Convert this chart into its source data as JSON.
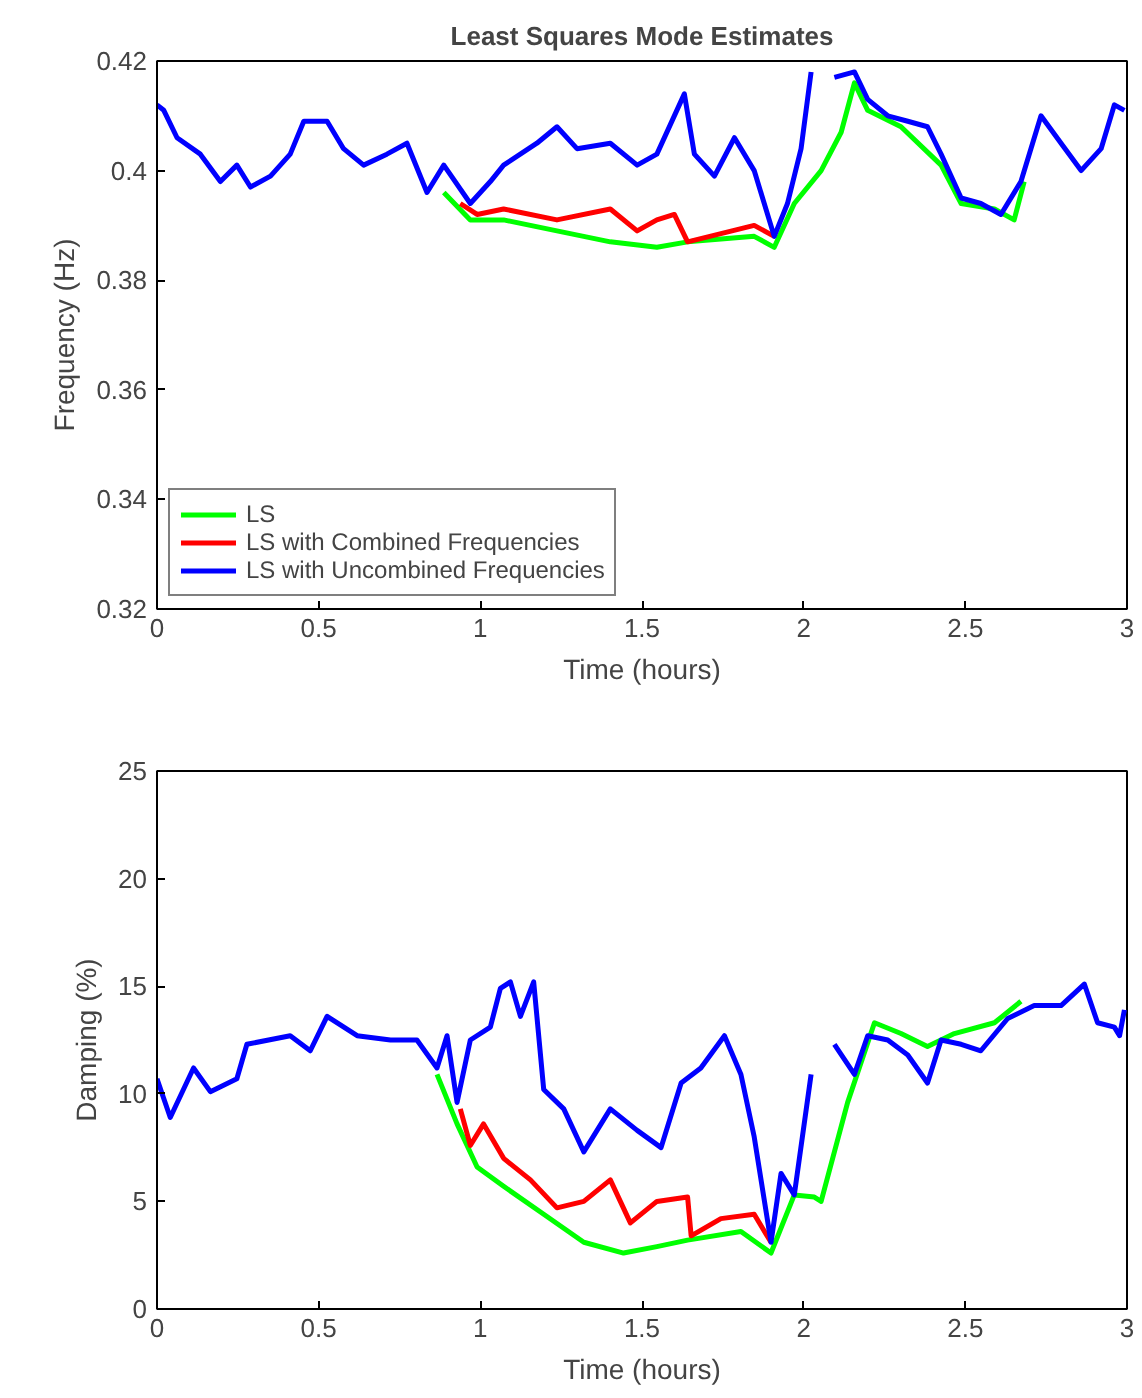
{
  "chart_data": [
    {
      "type": "line",
      "title": "Least Squares Mode Estimates",
      "xlabel": "Time (hours)",
      "ylabel": "Frequency (Hz)",
      "xlim": [
        0,
        3
      ],
      "ylim": [
        0.32,
        0.42
      ],
      "xticks": [
        0,
        0.5,
        1,
        1.5,
        2,
        2.5,
        3
      ],
      "yticks": [
        0.32,
        0.34,
        0.36,
        0.38,
        0.4,
        0.42
      ],
      "grid": false,
      "legend": "bottom left",
      "line_style": "solid",
      "marker": "none",
      "series": [
        {
          "name": "LS",
          "color": "#00ff00",
          "x": [
            0.887,
            0.969,
            1.072,
            1.237,
            1.402,
            1.546,
            1.641,
            1.847,
            1.909,
            1.971,
            2.054,
            2.116,
            2.157,
            2.198,
            2.301,
            2.425,
            2.487,
            2.59,
            2.651,
            2.682
          ],
          "values": [
            0.396,
            0.391,
            0.391,
            0.389,
            0.387,
            0.386,
            0.387,
            0.388,
            0.386,
            0.394,
            0.4,
            0.407,
            0.416,
            0.411,
            0.408,
            0.401,
            0.394,
            0.393,
            0.391,
            0.398
          ]
        },
        {
          "name": "LS with Combined Frequencies",
          "color": "#ff0000",
          "x": [
            0.938,
            0.99,
            1.072,
            1.237,
            1.402,
            1.485,
            1.546,
            1.6,
            1.641,
            1.847,
            1.909
          ],
          "values": [
            0.394,
            0.392,
            0.393,
            0.391,
            0.393,
            0.389,
            0.391,
            0.392,
            0.387,
            0.39,
            0.388
          ]
        },
        {
          "name": "LS with Uncombined Frequencies",
          "color": "#0000ff",
          "x": [
            0,
            0.021,
            0.062,
            0.134,
            0.196,
            0.247,
            0.289,
            0.351,
            0.412,
            0.454,
            0.526,
            0.577,
            0.639,
            0.711,
            0.773,
            0.835,
            0.887,
            0.969,
            1.031,
            1.072,
            1.175,
            1.237,
            1.299,
            1.402,
            1.485,
            1.546,
            1.631,
            1.662,
            1.724,
            1.786,
            1.847,
            1.909,
            1.95,
            1.992,
            2.023,
            2.06,
            2.095,
            2.157,
            2.198,
            2.26,
            2.322,
            2.383,
            2.425,
            2.487,
            2.548,
            2.61,
            2.672,
            2.734,
            2.796,
            2.858,
            2.92,
            2.961,
            2.992
          ],
          "values": [
            0.412,
            0.411,
            0.406,
            0.403,
            0.398,
            0.401,
            0.397,
            0.399,
            0.403,
            0.409,
            0.409,
            0.404,
            0.401,
            0.403,
            0.405,
            0.396,
            0.401,
            0.394,
            0.398,
            0.401,
            0.405,
            0.408,
            0.404,
            0.405,
            0.401,
            0.403,
            0.414,
            0.403,
            0.399,
            0.406,
            0.4,
            0.388,
            0.394,
            0.404,
            0.418,
            null,
            0.417,
            0.418,
            0.413,
            0.41,
            0.409,
            0.408,
            0.403,
            0.395,
            0.394,
            0.392,
            0.398,
            0.41,
            0.405,
            0.4,
            0.404,
            0.412,
            0.411
          ]
        }
      ]
    },
    {
      "type": "line",
      "xlabel": "Time (hours)",
      "ylabel": "Damping (%)",
      "xlim": [
        0,
        3
      ],
      "ylim": [
        0,
        25
      ],
      "xticks": [
        0,
        0.5,
        1,
        1.5,
        2,
        2.5,
        3
      ],
      "yticks": [
        0,
        5,
        10,
        15,
        20,
        25
      ],
      "grid": false,
      "line_style": "solid",
      "marker": "none",
      "series": [
        {
          "color": "#00ff00",
          "x": [
            0.866,
            0.928,
            0.99,
            1.072,
            1.196,
            1.32,
            1.443,
            1.546,
            1.641,
            1.806,
            1.899,
            1.971,
            2.033,
            2.054,
            2.136,
            2.219,
            2.301,
            2.383,
            2.466,
            2.59,
            2.672
          ],
          "values": [
            10.9,
            8.6,
            6.6,
            5.7,
            4.4,
            3.1,
            2.6,
            2.9,
            3.2,
            3.6,
            2.6,
            5.3,
            5.2,
            5.0,
            9.6,
            13.3,
            12.8,
            12.2,
            12.8,
            13.3,
            14.3
          ]
        },
        {
          "color": "#ff0000",
          "x": [
            0.938,
            0.969,
            1.01,
            1.072,
            1.155,
            1.237,
            1.32,
            1.402,
            1.464,
            1.546,
            1.641,
            1.652,
            1.744,
            1.847,
            1.899
          ],
          "values": [
            9.3,
            7.6,
            8.6,
            7.0,
            6.0,
            4.7,
            5.0,
            6.0,
            4.0,
            5.0,
            5.2,
            3.4,
            4.2,
            4.4,
            3.1
          ]
        },
        {
          "color": "#0000ff",
          "x": [
            0,
            0.041,
            0.113,
            0.165,
            0.247,
            0.278,
            0.412,
            0.474,
            0.526,
            0.619,
            0.722,
            0.804,
            0.866,
            0.897,
            0.928,
            0.969,
            1.031,
            1.062,
            1.093,
            1.124,
            1.165,
            1.196,
            1.258,
            1.32,
            1.402,
            1.485,
            1.559,
            1.621,
            1.682,
            1.755,
            1.806,
            1.847,
            1.899,
            1.93,
            1.971,
            2.023,
            2.06,
            2.095,
            2.157,
            2.198,
            2.26,
            2.322,
            2.383,
            2.425,
            2.487,
            2.548,
            2.631,
            2.713,
            2.796,
            2.868,
            2.909,
            2.961,
            2.977,
            2.992
          ],
          "values": [
            10.7,
            8.9,
            11.2,
            10.1,
            10.7,
            12.3,
            12.7,
            12.0,
            13.6,
            12.7,
            12.5,
            12.5,
            11.2,
            12.7,
            9.6,
            12.5,
            13.1,
            14.9,
            15.2,
            13.6,
            15.2,
            10.2,
            9.3,
            7.3,
            9.3,
            8.3,
            7.5,
            10.5,
            11.2,
            12.7,
            10.9,
            8.0,
            3.1,
            6.3,
            5.3,
            10.9,
            null,
            12.3,
            10.9,
            12.7,
            12.5,
            11.8,
            10.5,
            12.5,
            12.3,
            12.0,
            13.5,
            14.1,
            14.1,
            15.1,
            13.3,
            13.1,
            12.7,
            13.9
          ]
        }
      ]
    }
  ]
}
